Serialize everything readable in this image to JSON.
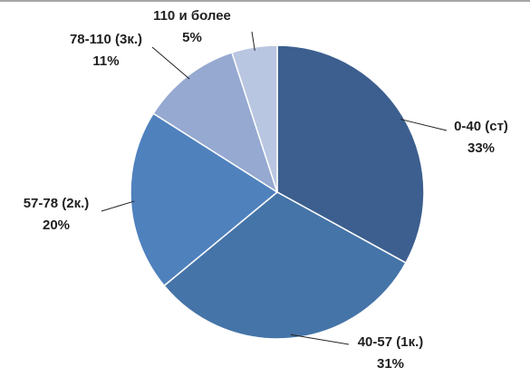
{
  "chart_data": {
    "type": "pie",
    "categories": [
      "0-40 (ст)",
      "40-57 (1к.)",
      "57-78 (2к.)",
      "78-110 (3к.)",
      "110 и более"
    ],
    "values": [
      33,
      31,
      20,
      11,
      5
    ],
    "value_labels": [
      "33%",
      "31%",
      "20%",
      "11%",
      "5%"
    ],
    "colors": [
      "#3c5f8f",
      "#4574a8",
      "#4f81bd",
      "#95a9d1",
      "#b9c6e1"
    ]
  }
}
